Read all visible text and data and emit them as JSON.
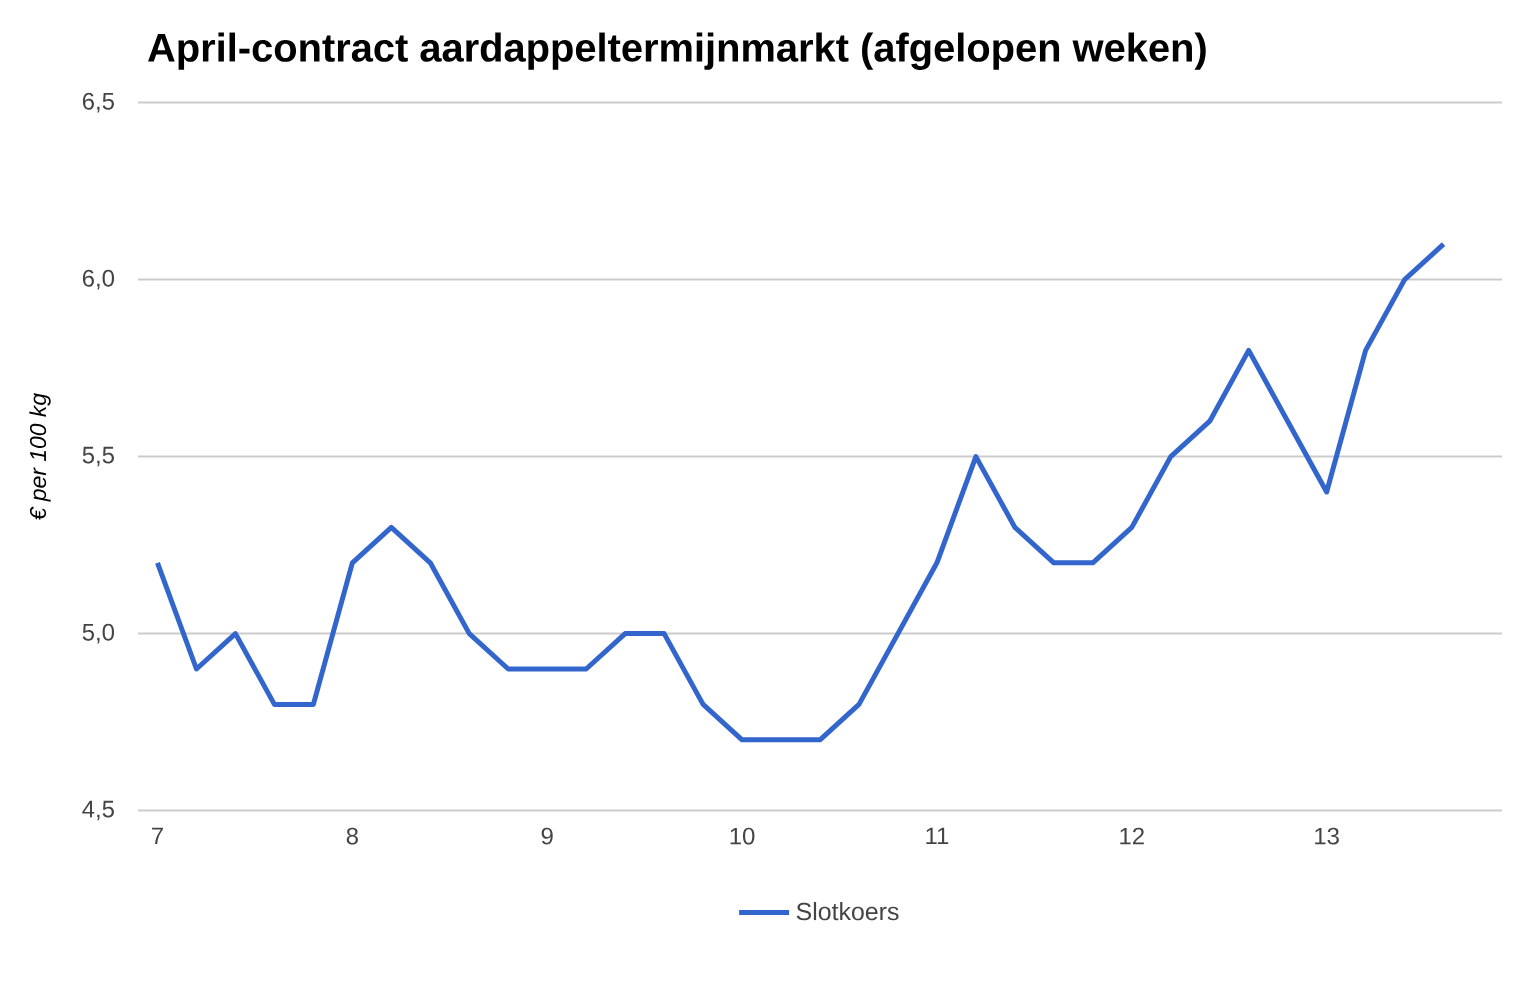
{
  "chart_data": {
    "type": "line",
    "title": "April-contract aardappeltermijnmarkt (afgelopen weken)",
    "ylabel": "€ per 100 kg",
    "x": [
      7.0,
      7.2,
      7.4,
      7.6,
      7.8,
      8.0,
      8.2,
      8.4,
      8.6,
      8.8,
      9.0,
      9.2,
      9.4,
      9.6,
      9.8,
      10.0,
      10.2,
      10.4,
      10.6,
      10.8,
      11.0,
      11.2,
      11.4,
      11.6,
      11.8,
      12.0,
      12.2,
      12.4,
      12.6,
      12.8,
      13.0,
      13.2,
      13.4,
      13.6
    ],
    "series": [
      {
        "name": "Slotkoers",
        "color": "#3366cc",
        "values": [
          5.2,
          4.9,
          5.0,
          4.8,
          4.8,
          5.2,
          5.3,
          5.2,
          5.0,
          4.9,
          4.9,
          4.9,
          5.0,
          5.0,
          4.8,
          4.7,
          4.7,
          4.7,
          4.8,
          5.0,
          5.2,
          5.5,
          5.3,
          5.2,
          5.2,
          5.3,
          5.5,
          5.6,
          5.8,
          5.6,
          5.4,
          5.8,
          6.0,
          6.1
        ]
      }
    ],
    "xlim": [
      6.9,
      13.9
    ],
    "xticks": [
      7,
      8,
      9,
      10,
      11,
      12,
      13
    ],
    "ylim": [
      4.5,
      6.5
    ],
    "yticks": [
      {
        "value": 4.5,
        "label": "4,5"
      },
      {
        "value": 5.0,
        "label": "5,0"
      },
      {
        "value": 5.5,
        "label": "5,5"
      },
      {
        "value": 6.0,
        "label": "6,0"
      },
      {
        "value": 6.5,
        "label": "6,5"
      }
    ],
    "grid": "y",
    "legend": "bottom",
    "line_style": "solid"
  }
}
